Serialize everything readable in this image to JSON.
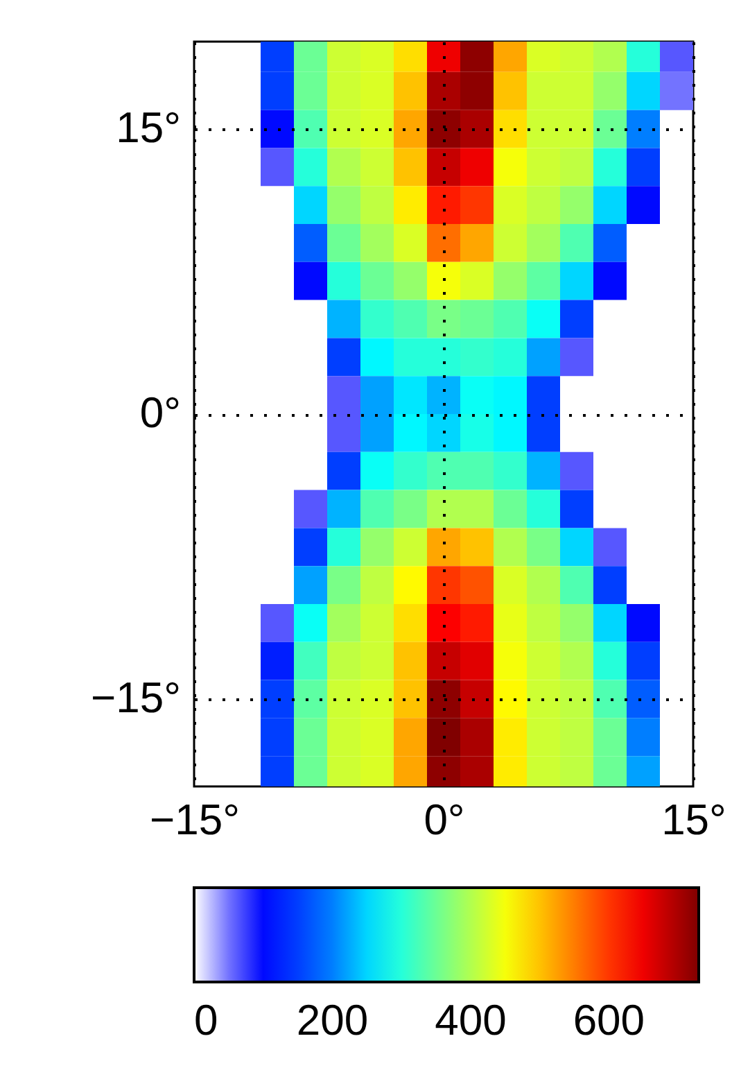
{
  "chart_data": {
    "type": "heatmap",
    "x": [
      -14,
      -12,
      -10,
      -8,
      -6,
      -4,
      -2,
      0,
      2,
      4,
      6,
      8,
      10,
      12,
      14
    ],
    "y": [
      19,
      17,
      15,
      13,
      11,
      9,
      7,
      5,
      3,
      1,
      -1,
      -3,
      -5,
      -7,
      -9,
      -11,
      -13,
      -15,
      -17,
      -19
    ],
    "cells": [
      [
        null,
        null,
        150,
        350,
        420,
        430,
        480,
        650,
        720,
        520,
        430,
        420,
        400,
        300,
        60
      ],
      [
        null,
        null,
        150,
        350,
        420,
        430,
        500,
        700,
        720,
        500,
        420,
        420,
        380,
        250,
        50
      ],
      [
        null,
        null,
        100,
        330,
        420,
        430,
        520,
        720,
        700,
        480,
        420,
        420,
        350,
        200,
        null
      ],
      [
        null,
        null,
        60,
        300,
        400,
        420,
        500,
        680,
        650,
        450,
        420,
        410,
        300,
        150,
        null
      ],
      [
        null,
        null,
        null,
        250,
        380,
        410,
        470,
        620,
        600,
        430,
        410,
        380,
        250,
        100,
        null
      ],
      [
        null,
        null,
        null,
        180,
        350,
        390,
        430,
        560,
        520,
        420,
        390,
        330,
        180,
        null,
        null
      ],
      [
        null,
        null,
        null,
        100,
        300,
        350,
        380,
        450,
        430,
        380,
        340,
        250,
        100,
        null,
        null
      ],
      [
        null,
        null,
        null,
        null,
        230,
        310,
        330,
        360,
        350,
        330,
        280,
        150,
        null,
        null,
        null
      ],
      [
        null,
        null,
        null,
        null,
        150,
        270,
        300,
        300,
        310,
        300,
        220,
        60,
        null,
        null,
        null
      ],
      [
        null,
        null,
        null,
        null,
        60,
        220,
        260,
        230,
        280,
        270,
        150,
        null,
        null,
        null,
        null
      ],
      [
        null,
        null,
        null,
        null,
        60,
        220,
        270,
        250,
        290,
        270,
        150,
        null,
        null,
        null,
        null
      ],
      [
        null,
        null,
        null,
        null,
        150,
        280,
        310,
        330,
        330,
        310,
        230,
        60,
        null,
        null,
        null
      ],
      [
        null,
        null,
        null,
        60,
        230,
        330,
        360,
        400,
        400,
        350,
        300,
        150,
        null,
        null,
        null
      ],
      [
        null,
        null,
        null,
        150,
        300,
        380,
        420,
        520,
        500,
        400,
        360,
        250,
        60,
        null,
        null
      ],
      [
        null,
        null,
        null,
        220,
        360,
        410,
        460,
        600,
        580,
        430,
        400,
        330,
        150,
        null,
        null
      ],
      [
        null,
        null,
        60,
        280,
        390,
        420,
        480,
        640,
        620,
        440,
        410,
        380,
        250,
        100,
        null
      ],
      [
        null,
        null,
        120,
        320,
        410,
        420,
        500,
        680,
        660,
        450,
        420,
        400,
        300,
        150,
        null
      ],
      [
        null,
        null,
        150,
        340,
        420,
        430,
        500,
        720,
        680,
        460,
        420,
        410,
        330,
        180,
        null
      ],
      [
        null,
        null,
        150,
        350,
        420,
        430,
        520,
        730,
        700,
        470,
        420,
        410,
        350,
        200,
        null
      ],
      [
        null,
        null,
        150,
        350,
        420,
        430,
        520,
        720,
        700,
        470,
        420,
        410,
        350,
        220,
        null
      ]
    ],
    "xlim": [
      -15,
      15
    ],
    "ylim": [
      -19.6,
      19.6
    ],
    "xticks": [
      {
        "value": -15,
        "label": "−15°"
      },
      {
        "value": 0,
        "label": "0°"
      },
      {
        "value": 15,
        "label": "15°"
      }
    ],
    "yticks": [
      {
        "value": -15,
        "label": "−15°"
      },
      {
        "value": 0,
        "label": "0°"
      },
      {
        "value": 15,
        "label": "15°"
      }
    ],
    "clim": [
      0,
      730
    ],
    "cticks": [
      0,
      200,
      400,
      600
    ],
    "grid": true
  }
}
